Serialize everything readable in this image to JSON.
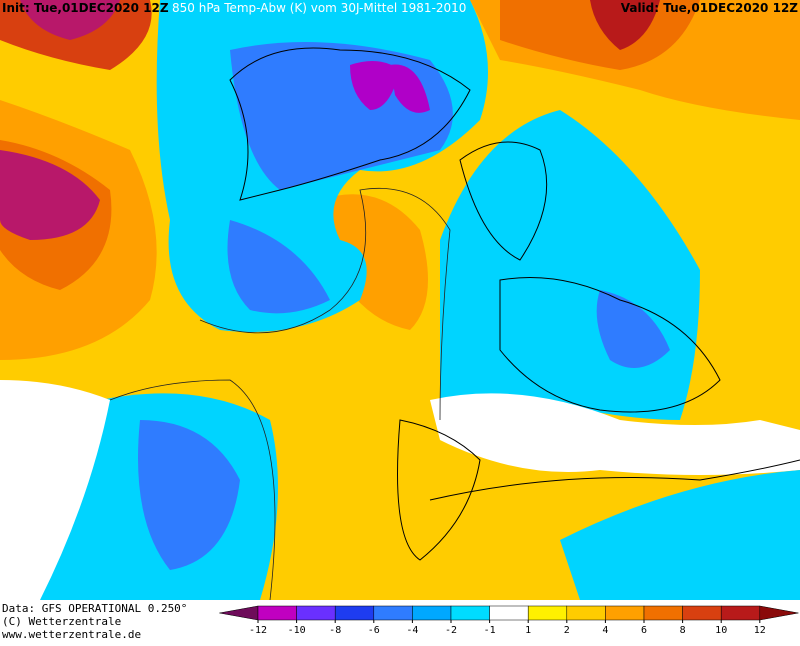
{
  "header": {
    "init": "Init: Tue,01DEC2020 12Z",
    "title": "850 hPa Temp-Abw (K) vom 30J-Mittel 1981-2010",
    "valid": "Valid: Tue,01DEC2020 12Z"
  },
  "footer": {
    "data": "Data: GFS OPERATIONAL 0.250°",
    "copyright": "(C) Wetterzentrale",
    "url": "www.wetterzentrale.de"
  },
  "legend": {
    "ticks": [
      -12,
      -10,
      -8,
      -6,
      -4,
      -2,
      -1,
      1,
      2,
      4,
      6,
      8,
      10,
      12
    ],
    "colors": [
      "#6e0c5a",
      "#c000c0",
      "#6a30ff",
      "#1e3cf0",
      "#2f7cff",
      "#00a8ff",
      "#00dcff",
      "#ffffff",
      "#fff000",
      "#ffcc00",
      "#ffa000",
      "#f07000",
      "#d84010",
      "#b81a1a",
      "#8a0a0a"
    ]
  }
}
